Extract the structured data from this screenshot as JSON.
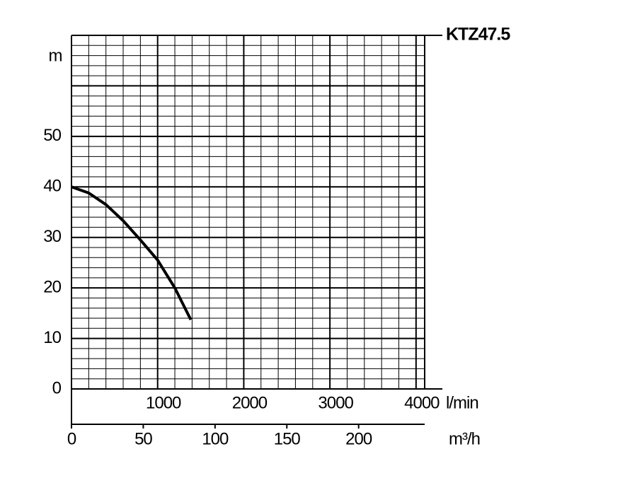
{
  "chart_data": {
    "type": "line",
    "title": "KTZ47.5",
    "y_label": "m",
    "x_label": "l/min",
    "x2_label": "m³/h",
    "x": [
      0,
      200,
      400,
      600,
      800,
      1000,
      1200,
      1385
    ],
    "values": [
      40,
      38.8,
      36.5,
      33.3,
      29.5,
      25.5,
      20,
      13.7
    ],
    "color": "#000000",
    "xlim": [
      0,
      4100
    ],
    "xticks": [
      1000,
      2000,
      3000,
      4000
    ],
    "x2lim": [
      0,
      246
    ],
    "x2ticks": [
      0,
      50,
      100,
      150,
      200
    ],
    "ylim": [
      0,
      70
    ],
    "yticks": [
      0,
      10,
      20,
      30,
      40,
      50
    ],
    "grid": true,
    "major_grid_step": {
      "x": 1000,
      "y": 10
    },
    "minor_grid_step": {
      "x": 200,
      "y": 2
    }
  }
}
